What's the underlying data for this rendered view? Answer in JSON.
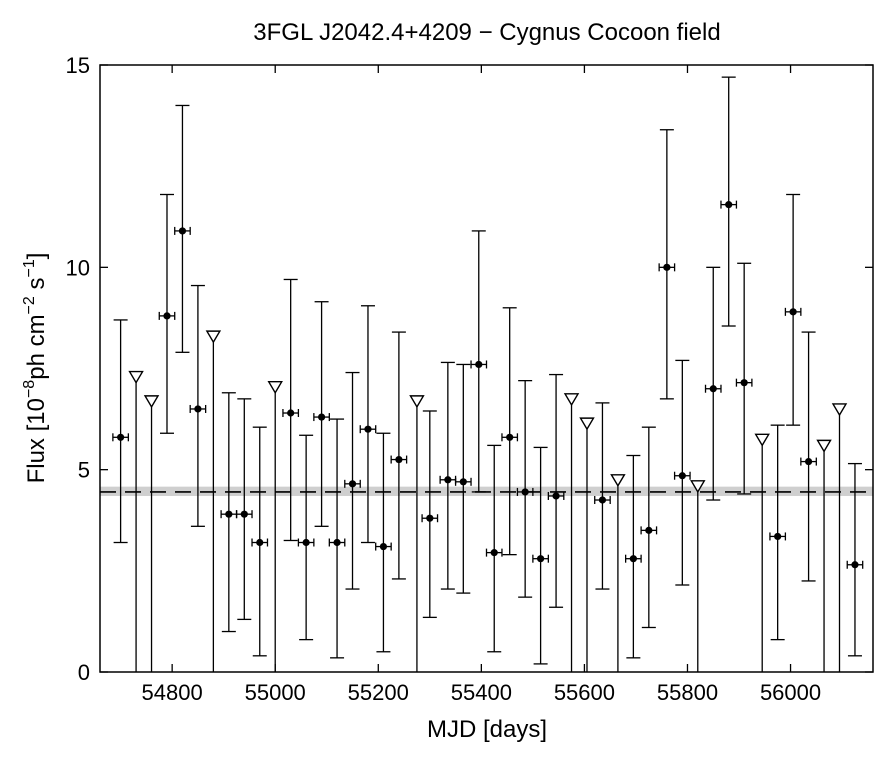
{
  "chart_data": {
    "type": "scatter",
    "title": "3FGL J2042.4+4209 − Cygnus Cocoon field",
    "xlabel": "MJD [days]",
    "ylabel": {
      "prefix": "Flux [10",
      "exp1": "−8",
      "mid": "ph cm",
      "exp2": "−2",
      "mid2": " s",
      "exp3": "−1",
      "suffix": "]"
    },
    "xlim": [
      54660,
      56160
    ],
    "ylim": [
      0,
      15
    ],
    "xticks": [
      54800,
      55000,
      55200,
      55400,
      55600,
      55800,
      56000
    ],
    "yticks": [
      0,
      5,
      10,
      15
    ],
    "grid": false,
    "mean_flux": 4.45,
    "mean_band": [
      4.35,
      4.58
    ],
    "bin_halfwidth": 15,
    "detections": [
      {
        "x": 54700,
        "y": 5.8,
        "lo": 3.2,
        "hi": 8.7
      },
      {
        "x": 54790,
        "y": 8.8,
        "lo": 5.9,
        "hi": 11.8
      },
      {
        "x": 54820,
        "y": 10.9,
        "lo": 7.9,
        "hi": 14.0
      },
      {
        "x": 54850,
        "y": 6.5,
        "lo": 3.6,
        "hi": 9.55
      },
      {
        "x": 54910,
        "y": 3.9,
        "lo": 1.0,
        "hi": 6.9
      },
      {
        "x": 54940,
        "y": 3.9,
        "lo": 1.3,
        "hi": 6.75
      },
      {
        "x": 54970,
        "y": 3.2,
        "lo": 0.4,
        "hi": 6.05
      },
      {
        "x": 55030,
        "y": 6.4,
        "lo": 3.25,
        "hi": 9.7
      },
      {
        "x": 55060,
        "y": 3.2,
        "lo": 0.8,
        "hi": 5.85
      },
      {
        "x": 55090,
        "y": 6.3,
        "lo": 3.6,
        "hi": 9.15
      },
      {
        "x": 55120,
        "y": 3.2,
        "lo": 0.35,
        "hi": 6.25
      },
      {
        "x": 55150,
        "y": 4.65,
        "lo": 2.05,
        "hi": 7.4
      },
      {
        "x": 55180,
        "y": 6.0,
        "lo": 3.2,
        "hi": 9.05
      },
      {
        "x": 55210,
        "y": 3.1,
        "lo": 0.5,
        "hi": 5.9
      },
      {
        "x": 55240,
        "y": 5.25,
        "lo": 2.3,
        "hi": 8.4
      },
      {
        "x": 55300,
        "y": 3.8,
        "lo": 1.35,
        "hi": 6.45
      },
      {
        "x": 55335,
        "y": 4.75,
        "lo": 2.05,
        "hi": 7.65
      },
      {
        "x": 55365,
        "y": 4.7,
        "lo": 1.95,
        "hi": 7.6
      },
      {
        "x": 55395,
        "y": 7.6,
        "lo": 4.45,
        "hi": 10.9
      },
      {
        "x": 55425,
        "y": 2.95,
        "lo": 0.5,
        "hi": 5.6
      },
      {
        "x": 55455,
        "y": 5.8,
        "lo": 2.9,
        "hi": 9.0
      },
      {
        "x": 55485,
        "y": 4.45,
        "lo": 1.85,
        "hi": 7.2
      },
      {
        "x": 55515,
        "y": 2.8,
        "lo": 0.2,
        "hi": 5.55
      },
      {
        "x": 55545,
        "y": 4.35,
        "lo": 1.6,
        "hi": 7.35
      },
      {
        "x": 55635,
        "y": 4.25,
        "lo": 2.05,
        "hi": 6.65
      },
      {
        "x": 55695,
        "y": 2.8,
        "lo": 0.35,
        "hi": 5.35
      },
      {
        "x": 55725,
        "y": 3.5,
        "lo": 1.1,
        "hi": 6.05
      },
      {
        "x": 55760,
        "y": 10.0,
        "lo": 6.75,
        "hi": 13.4
      },
      {
        "x": 55790,
        "y": 4.85,
        "lo": 2.15,
        "hi": 7.7
      },
      {
        "x": 55850,
        "y": 7.0,
        "lo": 4.25,
        "hi": 10.0
      },
      {
        "x": 55880,
        "y": 11.55,
        "lo": 8.55,
        "hi": 14.7
      },
      {
        "x": 55910,
        "y": 7.15,
        "lo": 4.4,
        "hi": 10.1
      },
      {
        "x": 55975,
        "y": 3.35,
        "lo": 0.8,
        "hi": 6.1
      },
      {
        "x": 56005,
        "y": 8.9,
        "lo": 6.1,
        "hi": 11.8
      },
      {
        "x": 56035,
        "y": 5.2,
        "lo": 2.25,
        "hi": 8.4
      },
      {
        "x": 56125,
        "y": 2.65,
        "lo": 0.4,
        "hi": 5.15
      }
    ],
    "upper_limits": [
      {
        "x": 54730,
        "y": 7.3
      },
      {
        "x": 54760,
        "y": 6.7
      },
      {
        "x": 54880,
        "y": 8.3
      },
      {
        "x": 55000,
        "y": 7.05
      },
      {
        "x": 55275,
        "y": 6.7
      },
      {
        "x": 55575,
        "y": 6.75
      },
      {
        "x": 55605,
        "y": 6.15
      },
      {
        "x": 55665,
        "y": 4.75
      },
      {
        "x": 55820,
        "y": 4.6
      },
      {
        "x": 55945,
        "y": 5.75
      },
      {
        "x": 56065,
        "y": 5.6
      },
      {
        "x": 56095,
        "y": 6.5
      }
    ]
  }
}
